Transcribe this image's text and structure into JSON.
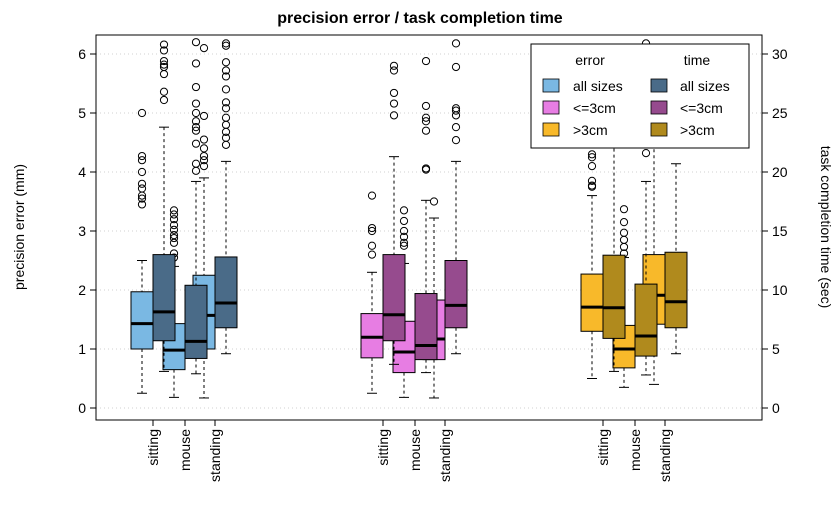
{
  "chart_data": {
    "type": "boxplot",
    "title": "precision error / task completion time",
    "ylabel_left": "precision error (mm)",
    "ylabel_right": "task completion time (sec)",
    "ylim_left": [
      0,
      6.2
    ],
    "ylim_right": [
      0,
      31
    ],
    "yticks_left": [
      "0",
      "1",
      "2",
      "3",
      "4",
      "5",
      "6"
    ],
    "yticks_right": [
      "0",
      "5",
      "10",
      "15",
      "20",
      "25",
      "30"
    ],
    "grid": true,
    "legend": {
      "position": "top-right",
      "col_titles": [
        "error",
        "time"
      ],
      "rows": [
        {
          "label": "all sizes",
          "error_color": "#7ab8e3",
          "time_color": "#4a6b88"
        },
        {
          "label": "<=3cm",
          "error_color": "#e77de3",
          "time_color": "#964b8e"
        },
        {
          "label": ">3cm",
          "error_color": "#f8b92a",
          "time_color": "#b08a1d"
        }
      ]
    },
    "categories": [
      "sitting",
      "mouse",
      "standing",
      "sitting",
      "mouse",
      "standing",
      "sitting",
      "mouse",
      "standing"
    ],
    "series": [
      {
        "group": "all sizes",
        "metric": "error",
        "color": "#7ab8e3",
        "axis": "left",
        "boxes": [
          {
            "min": 0.25,
            "q1": 1.0,
            "median": 1.43,
            "q3": 1.97,
            "max": 2.5,
            "outliers": [
              3.45,
              3.55,
              3.6,
              3.72,
              3.8,
              4.0,
              4.2,
              4.27,
              5.0
            ]
          },
          {
            "min": 0.18,
            "q1": 0.65,
            "median": 0.98,
            "q3": 1.43,
            "max": 2.4,
            "outliers": [
              2.55,
              2.62,
              2.8,
              2.88,
              2.93,
              3.02,
              3.1,
              3.2,
              3.28,
              3.35
            ]
          },
          {
            "min": 0.17,
            "q1": 1.0,
            "median": 1.57,
            "q3": 2.25,
            "max": 3.9,
            "outliers": [
              4.1,
              4.2,
              4.27,
              4.4,
              4.55,
              4.95,
              6.1
            ]
          }
        ]
      },
      {
        "group": "all sizes",
        "metric": "time",
        "color": "#4a6b88",
        "axis": "right",
        "boxes": [
          {
            "min": 3.1,
            "q1": 5.7,
            "median": 8.15,
            "q3": 13.0,
            "max": 23.8,
            "outliers": [
              26.1,
              26.8,
              28.3,
              28.9,
              29.1,
              29.4,
              30.3,
              30.8
            ]
          },
          {
            "min": 2.9,
            "q1": 4.2,
            "median": 5.65,
            "q3": 10.4,
            "max": 19.2,
            "outliers": [
              20.1,
              20.7,
              22.4,
              23.5,
              23.8,
              24.3,
              25.0,
              25.8,
              27.2,
              29.2,
              31.0
            ]
          },
          {
            "min": 4.6,
            "q1": 6.8,
            "median": 8.9,
            "q3": 12.8,
            "max": 20.9,
            "outliers": [
              22.3,
              22.9,
              23.4,
              24.0,
              24.6,
              25.4,
              25.9,
              27.0,
              28.1,
              28.6,
              29.3,
              30.7,
              30.9
            ]
          }
        ]
      },
      {
        "group": "<=3cm",
        "metric": "error",
        "color": "#e77de3",
        "axis": "left",
        "boxes": [
          {
            "min": 0.25,
            "q1": 0.85,
            "median": 1.2,
            "q3": 1.6,
            "max": 2.3,
            "outliers": [
              2.6,
              2.75,
              3.0,
              3.05,
              3.6
            ]
          },
          {
            "min": 0.18,
            "q1": 0.6,
            "median": 0.95,
            "q3": 1.47,
            "max": 2.45,
            "outliers": [
              2.75,
              2.8,
              2.9,
              3.0,
              3.17,
              3.35
            ]
          },
          {
            "min": 0.17,
            "q1": 0.82,
            "median": 1.17,
            "q3": 1.83,
            "max": 3.22,
            "outliers": [
              3.5
            ]
          }
        ]
      },
      {
        "group": "<=3cm",
        "metric": "time",
        "color": "#964b8e",
        "axis": "right",
        "boxes": [
          {
            "min": 3.7,
            "q1": 5.7,
            "median": 7.9,
            "q3": 13.0,
            "max": 21.3,
            "outliers": [
              24.8,
              25.8,
              26.7,
              28.6,
              29.0,
              32.0
            ]
          },
          {
            "min": 3.0,
            "q1": 4.1,
            "median": 5.3,
            "q3": 9.7,
            "max": 17.6,
            "outliers": [
              20.2,
              20.3,
              23.5,
              24.3,
              24.6,
              25.6,
              29.4
            ]
          },
          {
            "min": 4.6,
            "q1": 6.8,
            "median": 8.7,
            "q3": 12.5,
            "max": 20.9,
            "outliers": [
              22.7,
              23.8,
              24.8,
              25.2,
              25.4,
              28.9,
              30.9
            ]
          }
        ]
      },
      {
        "group": ">3cm",
        "metric": "error",
        "color": "#f8b92a",
        "axis": "left",
        "boxes": [
          {
            "min": 0.5,
            "q1": 1.3,
            "median": 1.71,
            "q3": 2.27,
            "max": 3.6,
            "outliers": [
              3.75,
              3.77,
              3.85,
              4.1,
              4.25,
              4.3,
              4.75,
              4.95
            ]
          },
          {
            "min": 0.35,
            "q1": 0.68,
            "median": 1.0,
            "q3": 1.4,
            "max": 2.55,
            "outliers": [
              2.62,
              2.73,
              2.85,
              2.97,
              3.15,
              3.37
            ]
          },
          {
            "min": 0.4,
            "q1": 1.42,
            "median": 1.91,
            "q3": 2.6,
            "max": 5.2,
            "outliers": [
              5.3,
              5.7,
              5.85,
              6.1
            ]
          }
        ]
      },
      {
        "group": ">3cm",
        "metric": "time",
        "color": "#b08a1d",
        "axis": "right",
        "boxes": [
          {
            "min": 3.1,
            "q1": 5.9,
            "median": 8.5,
            "q3": 12.95,
            "max": 23.0,
            "outliers": [
              27.2,
              30.5
            ]
          },
          {
            "min": 2.8,
            "q1": 4.4,
            "median": 6.1,
            "q3": 10.5,
            "max": 19.2,
            "outliers": [
              21.6,
              26.2,
              30.9
            ]
          },
          {
            "min": 4.6,
            "q1": 6.8,
            "median": 9.0,
            "q3": 13.2,
            "max": 20.7,
            "outliers": [
              25.6,
              26.8,
              27.4,
              28.6,
              30.5
            ]
          }
        ]
      }
    ]
  }
}
